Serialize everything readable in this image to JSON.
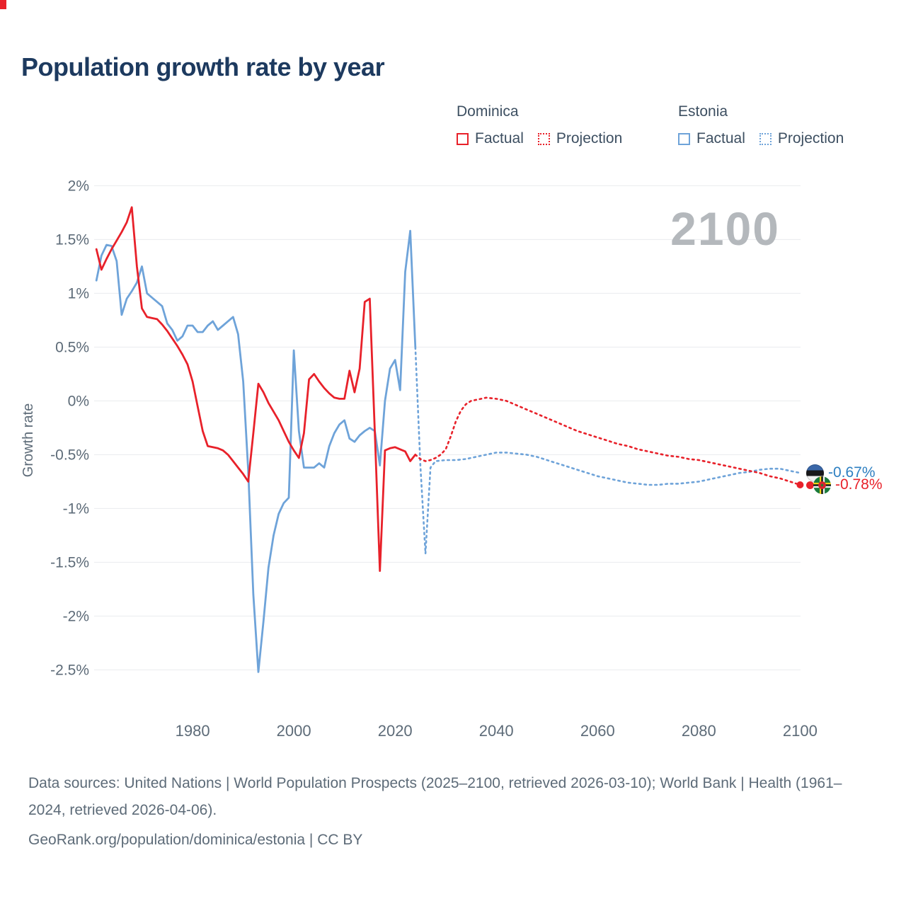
{
  "title": "Population growth rate by year",
  "watermark": "2100",
  "legend": {
    "series1_name": "Dominica",
    "series2_name": "Estonia",
    "factual_label": "Factual",
    "projection_label": "Projection"
  },
  "colors": {
    "dominica": "#e8212a",
    "estonia": "#6ea3d9",
    "dominica_label": "#e8212a",
    "estonia_label": "#2d7fc1",
    "title": "#1d3a5f"
  },
  "end_labels": {
    "estonia": {
      "value": "-0.67%"
    },
    "dominica": {
      "value": "-0.78%"
    }
  },
  "footer": {
    "line1": "Data sources: United Nations | World Population Prospects (2025–2100, retrieved 2026-03-10); World Bank | Health (1961–2024, retrieved 2026-04-06).",
    "line2": "GeoRank.org/population/dominica/estonia | CC BY"
  },
  "chart_data": {
    "type": "line",
    "title": "Population growth rate by year",
    "xlabel": "",
    "ylabel": "Growth rate",
    "legend_position": "top-right",
    "grid": "horizontal",
    "xlim": [
      1960,
      2104
    ],
    "ylim": [
      -2.8,
      2.2
    ],
    "x_ticks": [
      1980,
      2000,
      2020,
      2040,
      2060,
      2080,
      2100
    ],
    "y_ticks": [
      2,
      1.5,
      1,
      0.5,
      0,
      -0.5,
      -1,
      -1.5,
      -2,
      -2.5
    ],
    "y_tick_labels": [
      "2%",
      "1.5%",
      "1%",
      "0.5%",
      "0%",
      "-0.5%",
      "-1%",
      "-1.5%",
      "-2%",
      "-2.5%"
    ],
    "series": [
      {
        "name": "Dominica Factual",
        "id": "dominica-factual",
        "color_key": "dominica",
        "style": "solid",
        "points": [
          [
            1961,
            1.41
          ],
          [
            1962,
            1.22
          ],
          [
            1963,
            1.32
          ],
          [
            1964,
            1.41
          ],
          [
            1965,
            1.49
          ],
          [
            1966,
            1.57
          ],
          [
            1967,
            1.66
          ],
          [
            1968,
            1.8
          ],
          [
            1969,
            1.25
          ],
          [
            1970,
            0.86
          ],
          [
            1971,
            0.78
          ],
          [
            1972,
            0.77
          ],
          [
            1973,
            0.76
          ],
          [
            1974,
            0.71
          ],
          [
            1975,
            0.65
          ],
          [
            1976,
            0.58
          ],
          [
            1977,
            0.51
          ],
          [
            1978,
            0.43
          ],
          [
            1979,
            0.34
          ],
          [
            1980,
            0.18
          ],
          [
            1981,
            -0.05
          ],
          [
            1982,
            -0.28
          ],
          [
            1983,
            -0.42
          ],
          [
            1984,
            -0.43
          ],
          [
            1985,
            -0.44
          ],
          [
            1986,
            -0.46
          ],
          [
            1987,
            -0.5
          ],
          [
            1988,
            -0.56
          ],
          [
            1989,
            -0.62
          ],
          [
            1990,
            -0.68
          ],
          [
            1991,
            -0.75
          ],
          [
            1992,
            -0.3
          ],
          [
            1993,
            0.16
          ],
          [
            1994,
            0.08
          ],
          [
            1995,
            -0.02
          ],
          [
            1996,
            -0.1
          ],
          [
            1997,
            -0.18
          ],
          [
            1998,
            -0.28
          ],
          [
            1999,
            -0.38
          ],
          [
            2000,
            -0.46
          ],
          [
            2001,
            -0.53
          ],
          [
            2002,
            -0.3
          ],
          [
            2003,
            0.2
          ],
          [
            2004,
            0.25
          ],
          [
            2005,
            0.18
          ],
          [
            2006,
            0.12
          ],
          [
            2007,
            0.07
          ],
          [
            2008,
            0.03
          ],
          [
            2009,
            0.02
          ],
          [
            2010,
            0.02
          ],
          [
            2011,
            0.28
          ],
          [
            2012,
            0.08
          ],
          [
            2013,
            0.3
          ],
          [
            2014,
            0.92
          ],
          [
            2015,
            0.95
          ],
          [
            2016,
            -0.3
          ],
          [
            2017,
            -1.58
          ],
          [
            2018,
            -0.46
          ],
          [
            2019,
            -0.44
          ],
          [
            2020,
            -0.43
          ],
          [
            2021,
            -0.45
          ],
          [
            2022,
            -0.47
          ],
          [
            2023,
            -0.56
          ],
          [
            2024,
            -0.5
          ]
        ]
      },
      {
        "name": "Dominica Projection",
        "id": "dominica-projection",
        "color_key": "dominica",
        "style": "dotted",
        "points": [
          [
            2024,
            -0.5
          ],
          [
            2025,
            -0.54
          ],
          [
            2026,
            -0.56
          ],
          [
            2027,
            -0.55
          ],
          [
            2028,
            -0.53
          ],
          [
            2029,
            -0.5
          ],
          [
            2030,
            -0.45
          ],
          [
            2031,
            -0.33
          ],
          [
            2032,
            -0.19
          ],
          [
            2033,
            -0.09
          ],
          [
            2034,
            -0.03
          ],
          [
            2035,
            0.0
          ],
          [
            2036,
            0.01
          ],
          [
            2037,
            0.02
          ],
          [
            2038,
            0.03
          ],
          [
            2040,
            0.02
          ],
          [
            2042,
            0.0
          ],
          [
            2044,
            -0.04
          ],
          [
            2046,
            -0.08
          ],
          [
            2048,
            -0.12
          ],
          [
            2050,
            -0.16
          ],
          [
            2052,
            -0.2
          ],
          [
            2054,
            -0.24
          ],
          [
            2056,
            -0.28
          ],
          [
            2058,
            -0.31
          ],
          [
            2060,
            -0.34
          ],
          [
            2062,
            -0.37
          ],
          [
            2064,
            -0.4
          ],
          [
            2066,
            -0.42
          ],
          [
            2068,
            -0.45
          ],
          [
            2070,
            -0.47
          ],
          [
            2072,
            -0.49
          ],
          [
            2074,
            -0.51
          ],
          [
            2076,
            -0.52
          ],
          [
            2078,
            -0.54
          ],
          [
            2080,
            -0.55
          ],
          [
            2082,
            -0.57
          ],
          [
            2084,
            -0.59
          ],
          [
            2086,
            -0.61
          ],
          [
            2088,
            -0.63
          ],
          [
            2090,
            -0.65
          ],
          [
            2092,
            -0.67
          ],
          [
            2094,
            -0.7
          ],
          [
            2096,
            -0.72
          ],
          [
            2098,
            -0.75
          ],
          [
            2100,
            -0.78
          ]
        ]
      },
      {
        "name": "Estonia Factual",
        "id": "estonia-factual",
        "color_key": "estonia",
        "style": "solid",
        "points": [
          [
            1961,
            1.12
          ],
          [
            1962,
            1.35
          ],
          [
            1963,
            1.45
          ],
          [
            1964,
            1.44
          ],
          [
            1965,
            1.3
          ],
          [
            1966,
            0.8
          ],
          [
            1967,
            0.95
          ],
          [
            1968,
            1.02
          ],
          [
            1969,
            1.1
          ],
          [
            1970,
            1.25
          ],
          [
            1971,
            1.0
          ],
          [
            1972,
            0.96
          ],
          [
            1973,
            0.92
          ],
          [
            1974,
            0.88
          ],
          [
            1975,
            0.72
          ],
          [
            1976,
            0.66
          ],
          [
            1977,
            0.56
          ],
          [
            1978,
            0.6
          ],
          [
            1979,
            0.7
          ],
          [
            1980,
            0.7
          ],
          [
            1981,
            0.64
          ],
          [
            1982,
            0.64
          ],
          [
            1983,
            0.7
          ],
          [
            1984,
            0.74
          ],
          [
            1985,
            0.66
          ],
          [
            1986,
            0.7
          ],
          [
            1987,
            0.74
          ],
          [
            1988,
            0.78
          ],
          [
            1989,
            0.62
          ],
          [
            1990,
            0.18
          ],
          [
            1991,
            -0.65
          ],
          [
            1992,
            -1.8
          ],
          [
            1993,
            -2.52
          ],
          [
            1994,
            -2.05
          ],
          [
            1995,
            -1.55
          ],
          [
            1996,
            -1.25
          ],
          [
            1997,
            -1.05
          ],
          [
            1998,
            -0.95
          ],
          [
            1999,
            -0.9
          ],
          [
            2000,
            0.47
          ],
          [
            2001,
            -0.28
          ],
          [
            2002,
            -0.62
          ],
          [
            2003,
            -0.62
          ],
          [
            2004,
            -0.62
          ],
          [
            2005,
            -0.58
          ],
          [
            2006,
            -0.62
          ],
          [
            2007,
            -0.42
          ],
          [
            2008,
            -0.3
          ],
          [
            2009,
            -0.22
          ],
          [
            2010,
            -0.18
          ],
          [
            2011,
            -0.35
          ],
          [
            2012,
            -0.38
          ],
          [
            2013,
            -0.32
          ],
          [
            2014,
            -0.28
          ],
          [
            2015,
            -0.25
          ],
          [
            2016,
            -0.28
          ],
          [
            2017,
            -0.6
          ],
          [
            2018,
            0.0
          ],
          [
            2019,
            0.3
          ],
          [
            2020,
            0.38
          ],
          [
            2021,
            0.1
          ],
          [
            2022,
            1.2
          ],
          [
            2023,
            1.58
          ],
          [
            2024,
            0.5
          ]
        ]
      },
      {
        "name": "Estonia Projection",
        "id": "estonia-projection",
        "color_key": "estonia",
        "style": "dotted",
        "points": [
          [
            2024,
            0.5
          ],
          [
            2025,
            -0.6
          ],
          [
            2026,
            -1.42
          ],
          [
            2027,
            -0.62
          ],
          [
            2028,
            -0.56
          ],
          [
            2030,
            -0.55
          ],
          [
            2032,
            -0.55
          ],
          [
            2034,
            -0.54
          ],
          [
            2036,
            -0.52
          ],
          [
            2038,
            -0.5
          ],
          [
            2040,
            -0.48
          ],
          [
            2042,
            -0.48
          ],
          [
            2044,
            -0.49
          ],
          [
            2046,
            -0.5
          ],
          [
            2048,
            -0.52
          ],
          [
            2050,
            -0.55
          ],
          [
            2052,
            -0.58
          ],
          [
            2054,
            -0.61
          ],
          [
            2056,
            -0.64
          ],
          [
            2058,
            -0.67
          ],
          [
            2060,
            -0.7
          ],
          [
            2062,
            -0.72
          ],
          [
            2064,
            -0.74
          ],
          [
            2066,
            -0.76
          ],
          [
            2068,
            -0.77
          ],
          [
            2070,
            -0.78
          ],
          [
            2072,
            -0.78
          ],
          [
            2074,
            -0.77
          ],
          [
            2076,
            -0.77
          ],
          [
            2078,
            -0.76
          ],
          [
            2080,
            -0.75
          ],
          [
            2082,
            -0.73
          ],
          [
            2084,
            -0.71
          ],
          [
            2086,
            -0.69
          ],
          [
            2088,
            -0.67
          ],
          [
            2090,
            -0.66
          ],
          [
            2092,
            -0.64
          ],
          [
            2094,
            -0.63
          ],
          [
            2096,
            -0.63
          ],
          [
            2098,
            -0.65
          ],
          [
            2100,
            -0.67
          ]
        ]
      }
    ]
  }
}
